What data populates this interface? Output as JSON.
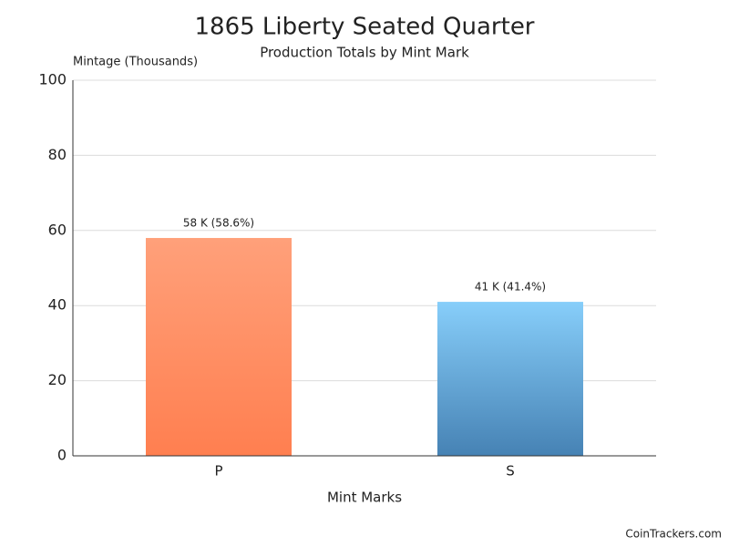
{
  "chart_data": {
    "type": "bar",
    "title": "1865 Liberty Seated Quarter",
    "subtitle": "Production Totals by Mint Mark",
    "y_label": "Mintage (Thousands)",
    "x_label": "Mint Marks",
    "categories": [
      "P",
      "S"
    ],
    "values": [
      58,
      41
    ],
    "value_labels": [
      "58 K (58.6%)",
      "41 K (41.4%)"
    ],
    "gradients": [
      {
        "top": "#ffa07a",
        "bottom": "#ff7f50"
      },
      {
        "top": "#87cefa",
        "bottom": "#4682b4"
      }
    ],
    "ylim": [
      0,
      100
    ],
    "yticks": [
      0,
      20,
      40,
      60,
      80,
      100
    ],
    "grid": true,
    "footer": "CoinTrackers.com"
  }
}
